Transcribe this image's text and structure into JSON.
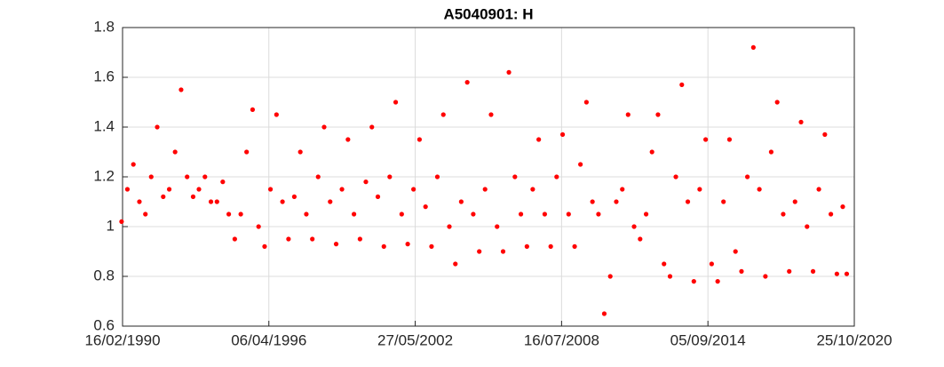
{
  "chart_data": {
    "type": "scatter",
    "title": "A5040901: H",
    "color": "#ff0000",
    "grid": true,
    "x": [
      "01/02/1990",
      "01/05/1990",
      "01/08/1990",
      "01/11/1990",
      "01/02/1991",
      "01/05/1991",
      "01/08/1991",
      "01/11/1991",
      "01/02/1992",
      "01/05/1992",
      "01/08/1992",
      "01/11/1992",
      "01/02/1993",
      "01/05/1993",
      "01/08/1993",
      "01/11/1993",
      "01/02/1994",
      "01/05/1994",
      "01/08/1994",
      "01/11/1994",
      "01/02/1995",
      "01/05/1995",
      "01/08/1995",
      "01/11/1995",
      "01/02/1996",
      "01/05/1996",
      "01/08/1996",
      "01/11/1996",
      "01/02/1997",
      "01/05/1997",
      "01/08/1997",
      "01/11/1997",
      "01/02/1998",
      "01/05/1998",
      "01/08/1998",
      "01/11/1998",
      "01/02/1999",
      "01/05/1999",
      "01/08/1999",
      "01/11/1999",
      "01/02/2000",
      "01/05/2000",
      "01/08/2000",
      "01/11/2000",
      "01/02/2001",
      "01/05/2001",
      "01/08/2001",
      "01/11/2001",
      "01/02/2002",
      "01/05/2002",
      "01/08/2002",
      "01/11/2002",
      "01/02/2003",
      "01/05/2003",
      "01/08/2003",
      "01/11/2003",
      "01/02/2004",
      "01/05/2004",
      "01/08/2004",
      "01/11/2004",
      "01/02/2005",
      "01/05/2005",
      "01/08/2005",
      "01/11/2005",
      "01/02/2006",
      "01/05/2006",
      "01/08/2006",
      "01/11/2006",
      "01/02/2007",
      "01/05/2007",
      "01/08/2007",
      "01/11/2007",
      "01/02/2008",
      "01/05/2008",
      "01/08/2008",
      "01/11/2008",
      "01/02/2009",
      "01/05/2009",
      "01/08/2009",
      "01/11/2009",
      "01/02/2010",
      "01/05/2010",
      "01/08/2010",
      "01/11/2010",
      "01/02/2011",
      "01/05/2011",
      "01/08/2011",
      "01/11/2011",
      "01/02/2012",
      "01/05/2012",
      "01/08/2012",
      "01/11/2012",
      "01/02/2013",
      "01/05/2013",
      "01/08/2013",
      "01/11/2013",
      "01/02/2014",
      "01/05/2014",
      "01/08/2014",
      "01/11/2014",
      "01/02/2015",
      "01/05/2015",
      "01/08/2015",
      "01/11/2015",
      "01/02/2016",
      "01/05/2016",
      "01/08/2016",
      "01/11/2016",
      "01/02/2017",
      "01/05/2017",
      "01/08/2017",
      "01/11/2017",
      "01/02/2018",
      "01/05/2018",
      "01/08/2018",
      "01/11/2018",
      "01/02/2019",
      "01/05/2019",
      "01/08/2019",
      "01/11/2019",
      "01/02/2020",
      "01/05/2020",
      "01/07/2020"
    ],
    "values": [
      1.02,
      1.15,
      1.25,
      1.1,
      1.05,
      1.2,
      1.4,
      1.12,
      1.15,
      1.3,
      1.55,
      1.2,
      1.12,
      1.15,
      1.2,
      1.1,
      1.1,
      1.18,
      1.05,
      0.95,
      1.05,
      1.3,
      1.47,
      1.0,
      0.92,
      1.15,
      1.45,
      1.1,
      0.95,
      1.12,
      1.3,
      1.05,
      0.95,
      1.2,
      1.4,
      1.1,
      0.93,
      1.15,
      1.35,
      1.05,
      0.95,
      1.18,
      1.4,
      1.12,
      0.92,
      1.2,
      1.5,
      1.05,
      0.93,
      1.15,
      1.35,
      1.08,
      0.92,
      1.2,
      1.45,
      1.0,
      0.85,
      1.1,
      1.58,
      1.05,
      0.9,
      1.15,
      1.45,
      1.0,
      0.9,
      1.62,
      1.2,
      1.05,
      0.92,
      1.15,
      1.35,
      1.05,
      0.92,
      1.2,
      1.37,
      1.05,
      0.92,
      1.25,
      1.5,
      1.1,
      1.05,
      0.65,
      0.8,
      1.1,
      1.15,
      1.45,
      1.0,
      0.95,
      1.05,
      1.3,
      1.45,
      0.85,
      0.8,
      1.2,
      1.57,
      1.1,
      0.78,
      1.15,
      1.35,
      0.85,
      0.78,
      1.1,
      1.35,
      0.9,
      0.82,
      1.2,
      1.72,
      1.15,
      0.8,
      1.3,
      1.5,
      1.05,
      0.82,
      1.1,
      1.42,
      1.0,
      0.82,
      1.15,
      1.37,
      1.05,
      0.81,
      1.08,
      0.81
    ],
    "xlim": [
      "16/02/1990",
      "25/10/2020"
    ],
    "xticks": [
      "16/02/1990",
      "06/04/1996",
      "27/05/2002",
      "16/07/2008",
      "05/09/2014",
      "25/10/2020"
    ],
    "ylim": [
      0.6,
      1.8
    ],
    "yticks": [
      0.6,
      0.8,
      1,
      1.2,
      1.4,
      1.6,
      1.8
    ]
  }
}
